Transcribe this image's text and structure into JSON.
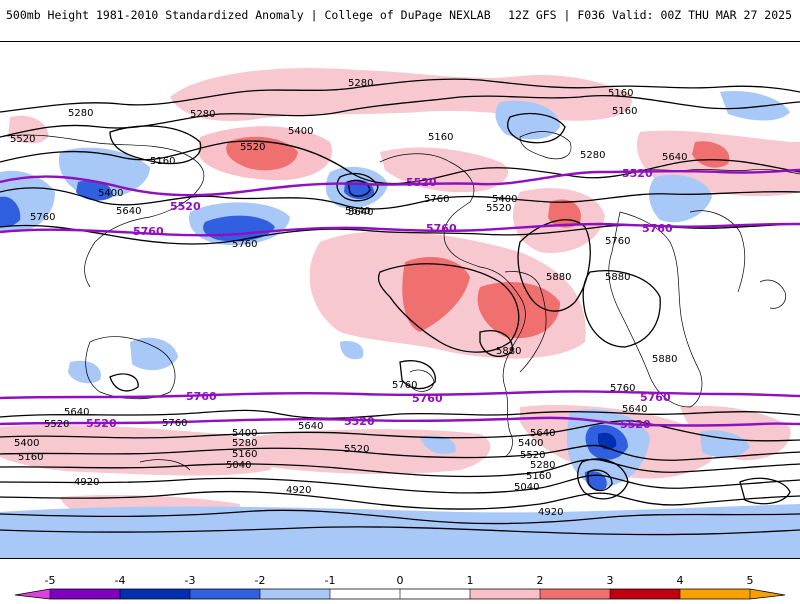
{
  "header": {
    "left_title": "500mb Height 1981-2010 Standardized Anomaly | College of DuPage NEXLAB",
    "right_title": "12Z GFS | F036 Valid: 00Z THU MAR 27 2025"
  },
  "colors": {
    "anomaly_scale": [
      "#e040e0",
      "#8000c0",
      "#0030b0",
      "#3060e0",
      "#a8c8f8",
      "#ffffff",
      "#f8c0c8",
      "#f07070",
      "#c00010",
      "#f8a000"
    ],
    "height_contour": "#000000",
    "reference_contour": "#9010c0"
  },
  "colorbar": {
    "ticks": [
      "-5",
      "-4",
      "-3",
      "-2",
      "-1",
      "0",
      "1",
      "2",
      "3",
      "4",
      "5"
    ]
  },
  "map_labels": {
    "contours": [
      {
        "text": "5280"
      },
      {
        "text": "5160"
      },
      {
        "text": "5160"
      },
      {
        "text": "5280"
      },
      {
        "text": "5520"
      },
      {
        "text": "5280"
      },
      {
        "text": "5400"
      },
      {
        "text": "5160"
      },
      {
        "text": "5160"
      },
      {
        "text": "5520"
      },
      {
        "text": "5400"
      },
      {
        "text": "5640"
      },
      {
        "text": "5760"
      },
      {
        "text": "5760"
      },
      {
        "text": "5640"
      },
      {
        "text": "5280"
      },
      {
        "text": "5640"
      },
      {
        "text": "5400"
      },
      {
        "text": "5760"
      },
      {
        "text": "5520"
      },
      {
        "text": "5760"
      },
      {
        "text": "5880"
      },
      {
        "text": "5880"
      },
      {
        "text": "5880"
      },
      {
        "text": "5880"
      },
      {
        "text": "5760"
      },
      {
        "text": "5760"
      },
      {
        "text": "5640"
      },
      {
        "text": "5520"
      },
      {
        "text": "5400"
      },
      {
        "text": "5160"
      },
      {
        "text": "5760"
      },
      {
        "text": "5400"
      },
      {
        "text": "5280"
      },
      {
        "text": "5160"
      },
      {
        "text": "5040"
      },
      {
        "text": "5640"
      },
      {
        "text": "5520"
      },
      {
        "text": "4920"
      },
      {
        "text": "4920"
      },
      {
        "text": "5640"
      },
      {
        "text": "5520"
      },
      {
        "text": "5400"
      },
      {
        "text": "5280"
      },
      {
        "text": "5160"
      },
      {
        "text": "5040"
      },
      {
        "text": "4920"
      },
      {
        "text": "5640"
      },
      {
        "text": "5640"
      }
    ],
    "reference": [
      {
        "text": "5520"
      },
      {
        "text": "5520"
      },
      {
        "text": "5520"
      },
      {
        "text": "5760"
      },
      {
        "text": "5760"
      },
      {
        "text": "5760"
      },
      {
        "text": "5760"
      },
      {
        "text": "5760"
      },
      {
        "text": "5760"
      },
      {
        "text": "5520"
      },
      {
        "text": "5520"
      },
      {
        "text": "5520"
      }
    ]
  }
}
